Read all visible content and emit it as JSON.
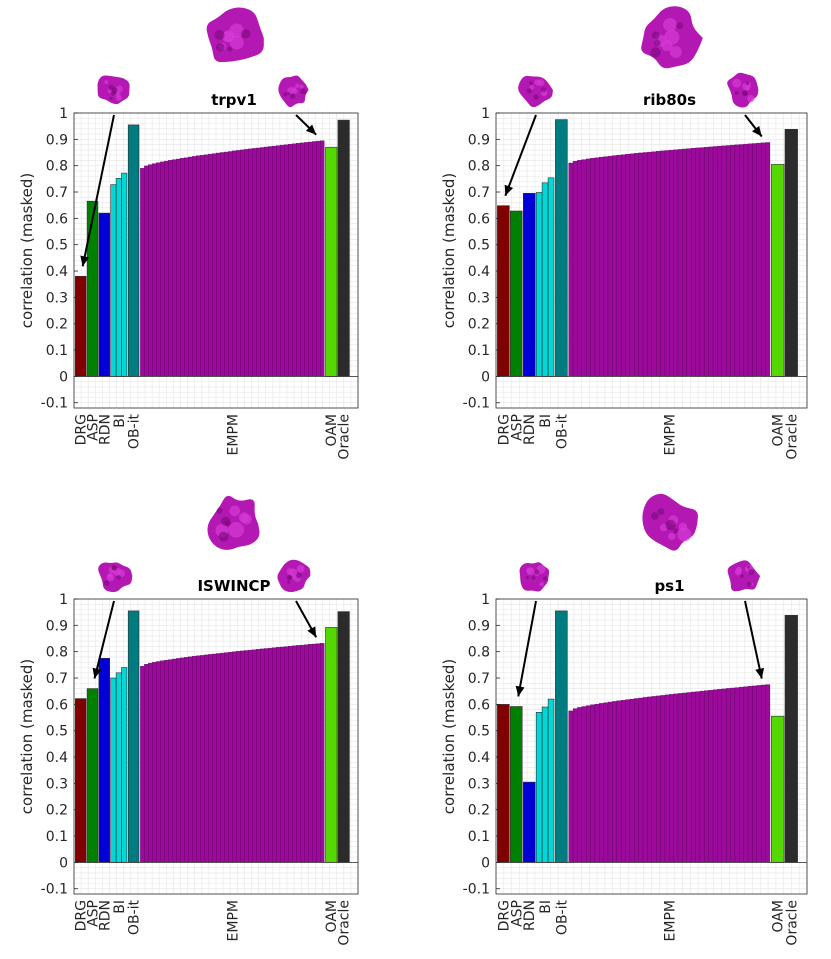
{
  "chart_data": [
    {
      "type": "bar",
      "title": "trpv1",
      "ylabel": "correlation (masked)",
      "ylim": [
        -0.12,
        1
      ],
      "yticks": [
        "-0.1",
        "0",
        "0.1",
        "0.2",
        "0.3",
        "0.4",
        "0.5",
        "0.6",
        "0.7",
        "0.8",
        "0.9",
        "1"
      ],
      "categories": [
        "DRG",
        "ASP",
        "RDN",
        "BI",
        "OB-it",
        "EMPM",
        "OAM",
        "Oracle"
      ],
      "groups": {
        "DRG": [
          0.38
        ],
        "ASP": [
          0.665
        ],
        "RDN": [
          0.62
        ],
        "BI": [
          0.728,
          0.752,
          0.772
        ],
        "OB-it": [
          0.955
        ],
        "EMPM": {
          "start": 0.79,
          "end": 0.895,
          "count": 46
        },
        "OAM": [
          0.87
        ],
        "Oracle": [
          0.973
        ]
      },
      "arrows": [
        "DRG",
        "EMPM-best"
      ]
    },
    {
      "type": "bar",
      "title": "rib80s",
      "ylabel": "correlation (masked)",
      "ylim": [
        -0.12,
        1
      ],
      "yticks": [
        "-0.1",
        "0",
        "0.1",
        "0.2",
        "0.3",
        "0.4",
        "0.5",
        "0.6",
        "0.7",
        "0.8",
        "0.9",
        "1"
      ],
      "categories": [
        "DRG",
        "ASP",
        "RDN",
        "BI",
        "OB-it",
        "EMPM",
        "OAM",
        "Oracle"
      ],
      "groups": {
        "DRG": [
          0.648
        ],
        "ASP": [
          0.628
        ],
        "RDN": [
          0.695
        ],
        "BI": [
          0.698,
          0.735,
          0.754
        ],
        "OB-it": [
          0.975
        ],
        "EMPM": {
          "start": 0.81,
          "end": 0.888,
          "count": 46
        },
        "OAM": [
          0.805
        ],
        "Oracle": [
          0.938
        ]
      },
      "arrows": [
        "DRG",
        "EMPM-best"
      ]
    },
    {
      "type": "bar",
      "title": "ISWINCP",
      "ylabel": "correlation (masked)",
      "ylim": [
        -0.12,
        1
      ],
      "yticks": [
        "-0.1",
        "0",
        "0.1",
        "0.2",
        "0.3",
        "0.4",
        "0.5",
        "0.6",
        "0.7",
        "0.8",
        "0.9",
        "1"
      ],
      "categories": [
        "DRG",
        "ASP",
        "RDN",
        "BI",
        "OB-it",
        "EMPM",
        "OAM",
        "Oracle"
      ],
      "groups": {
        "DRG": [
          0.622
        ],
        "ASP": [
          0.66
        ],
        "RDN": [
          0.775
        ],
        "BI": [
          0.7,
          0.72,
          0.74
        ],
        "OB-it": [
          0.955
        ],
        "EMPM": {
          "start": 0.745,
          "end": 0.832,
          "count": 46
        },
        "OAM": [
          0.892
        ],
        "Oracle": [
          0.952
        ]
      },
      "arrows": [
        "ASP",
        "EMPM-best"
      ]
    },
    {
      "type": "bar",
      "title": "ps1",
      "ylabel": "correlation (masked)",
      "ylim": [
        -0.12,
        1
      ],
      "yticks": [
        "-0.1",
        "0",
        "0.1",
        "0.2",
        "0.3",
        "0.4",
        "0.5",
        "0.6",
        "0.7",
        "0.8",
        "0.9",
        "1"
      ],
      "categories": [
        "DRG",
        "ASP",
        "RDN",
        "BI",
        "OB-it",
        "EMPM",
        "OAM",
        "Oracle"
      ],
      "groups": {
        "DRG": [
          0.6
        ],
        "ASP": [
          0.592
        ],
        "RDN": [
          0.305
        ],
        "BI": [
          0.57,
          0.59,
          0.62
        ],
        "OB-it": [
          0.955
        ],
        "EMPM": {
          "start": 0.575,
          "end": 0.675,
          "count": 46
        },
        "OAM": [
          0.555
        ],
        "Oracle": [
          0.938
        ]
      },
      "arrows": [
        "ASP",
        "EMPM-best"
      ]
    }
  ],
  "colors": {
    "DRG": "#800000",
    "ASP": "#008000",
    "RDN": "#0000d6",
    "BI": "#00d8d8",
    "OB-it": "#007b80",
    "EMPM": "#9c0a9c",
    "OAM": "#55d800",
    "Oracle": "#2b2b2b",
    "grid": "#e6e6e6",
    "axis": "#262626",
    "blob": "#b318b3"
  }
}
